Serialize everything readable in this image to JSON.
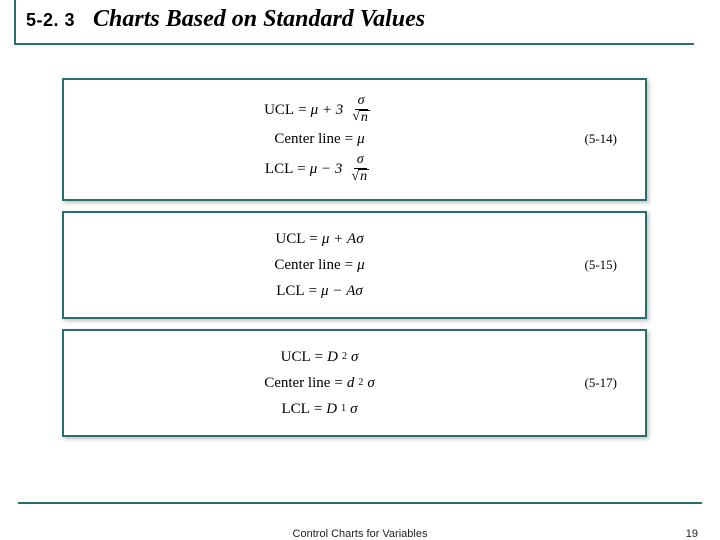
{
  "header": {
    "section_number": "5-2. 3",
    "section_title": "Charts Based on Standard Values"
  },
  "panels": [
    {
      "eq_label": "(5-14)",
      "lines": [
        {
          "lhs": "UCL",
          "eq": "=",
          "rhs_prefix": "μ + 3",
          "frac_num": "σ",
          "frac_den_radicand": "n"
        },
        {
          "lhs": "Center line",
          "eq": "=",
          "rhs_plain": "μ"
        },
        {
          "lhs": "LCL",
          "eq": "=",
          "rhs_prefix": "μ − 3",
          "frac_num": "σ",
          "frac_den_radicand": "n"
        }
      ]
    },
    {
      "eq_label": "(5-15)",
      "lines": [
        {
          "lhs": "UCL",
          "eq": "=",
          "rhs_plain": "μ + Aσ"
        },
        {
          "lhs": "Center line",
          "eq": "=",
          "rhs_plain": "μ"
        },
        {
          "lhs": "LCL",
          "eq": "=",
          "rhs_plain": "μ − Aσ"
        }
      ]
    },
    {
      "eq_label": "(5-17)",
      "lines": [
        {
          "lhs": "UCL",
          "eq": "=",
          "rhs_sym": "D",
          "rhs_sub": "2",
          "rhs_tail": "σ"
        },
        {
          "lhs": "Center line",
          "eq": "=",
          "rhs_sym": "d",
          "rhs_sub": "2",
          "rhs_tail": "σ"
        },
        {
          "lhs": "LCL",
          "eq": "=",
          "rhs_sym": "D",
          "rhs_sub": "1",
          "rhs_tail": "σ"
        }
      ]
    }
  ],
  "footer": {
    "center": "Control Charts for Variables",
    "page": "19"
  },
  "colors": {
    "accent": "#2a6e6e",
    "text": "#000000",
    "background": "#ffffff"
  }
}
